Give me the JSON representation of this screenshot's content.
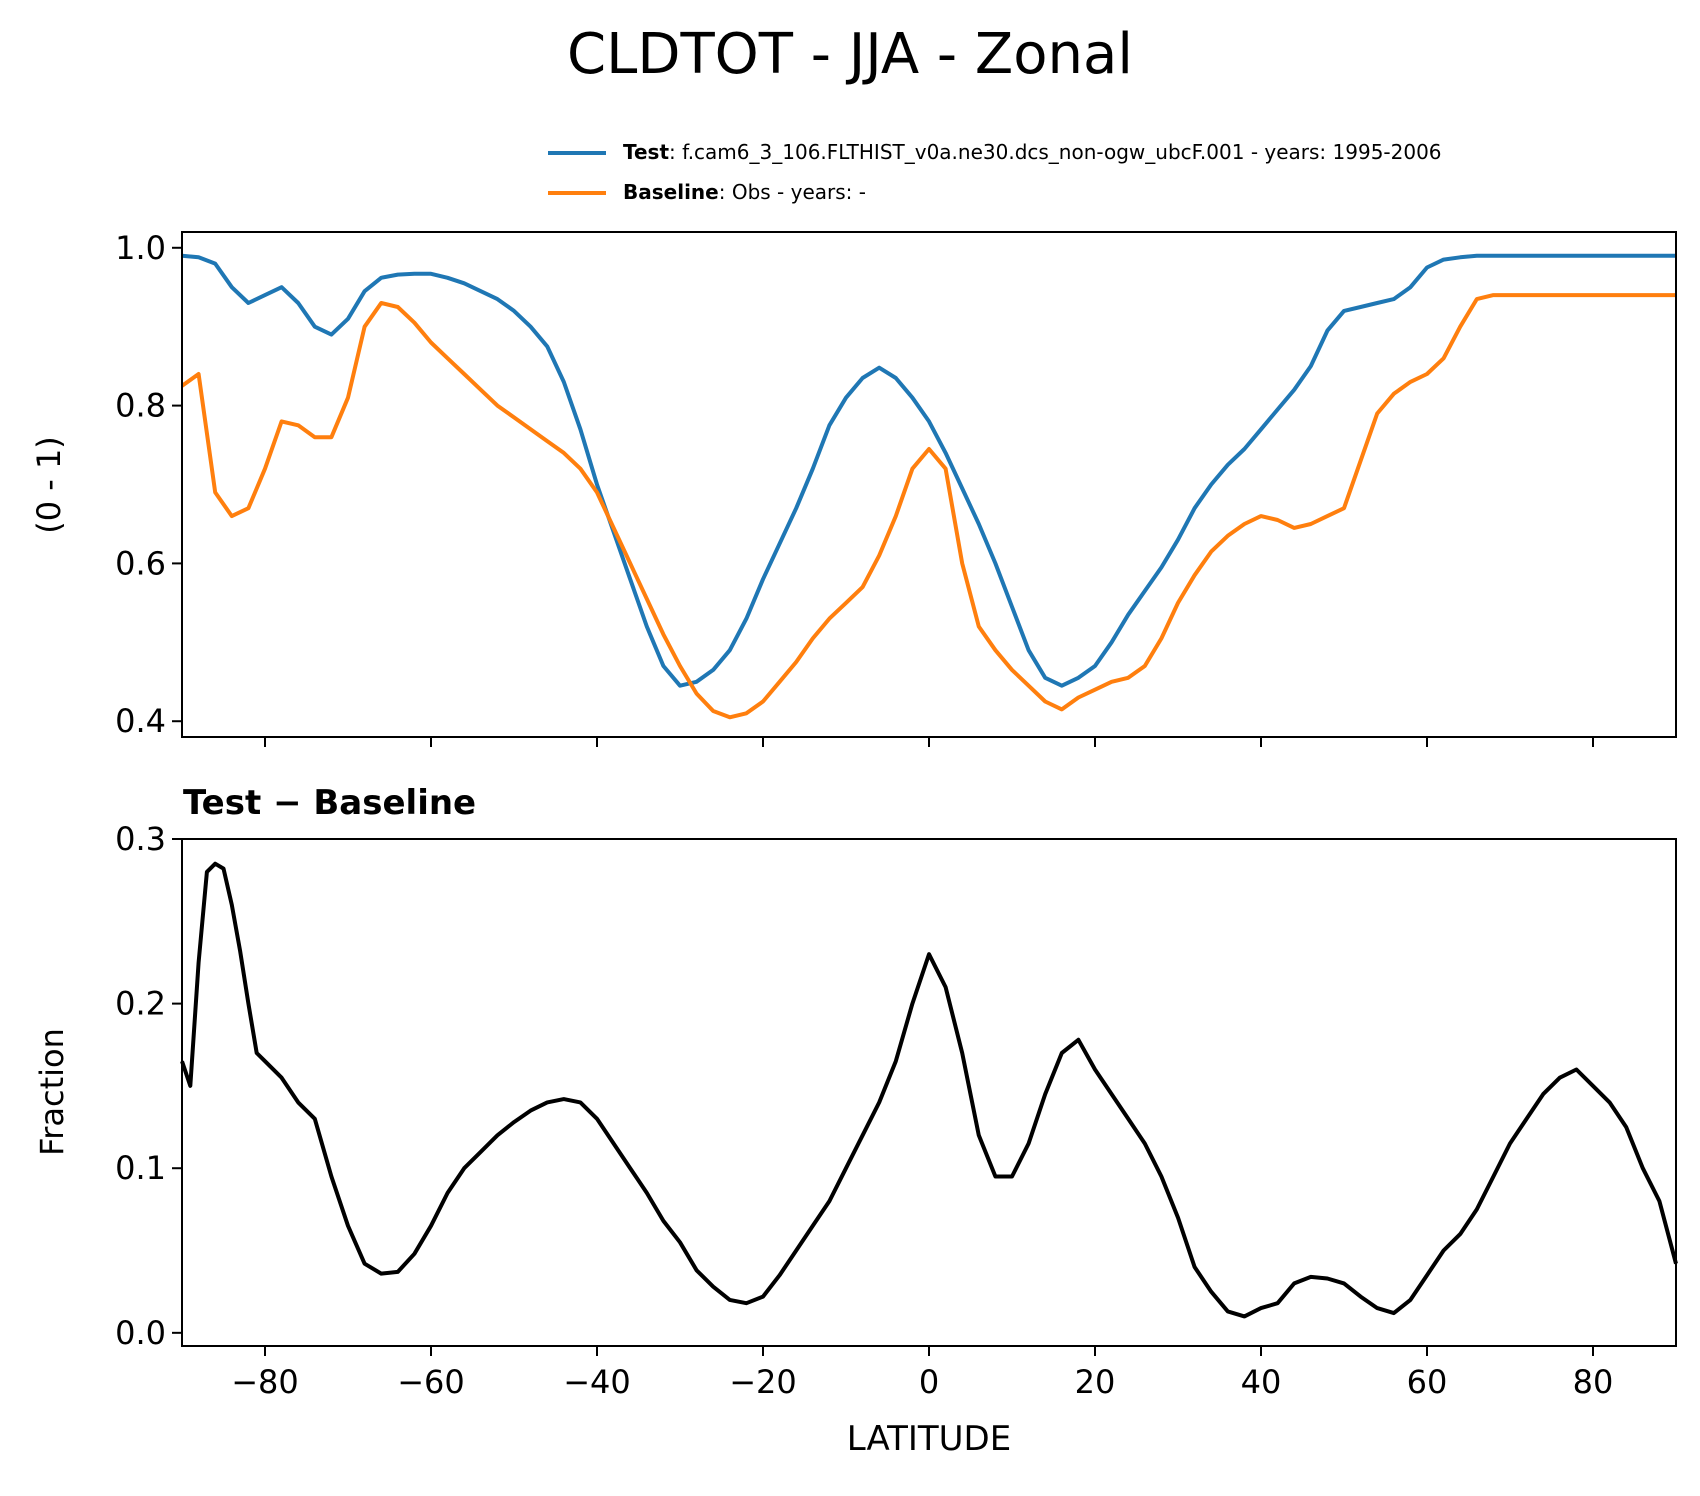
{
  "figure": {
    "title": "CLDTOT - JJA - Zonal",
    "legend": [
      {
        "label": "Test",
        "text": ": f.cam6_3_106.FLTHIST_v0a.ne30.dcs_non-ogw_ubcF.001 - years: 1995-2006",
        "color": "#1f77b4"
      },
      {
        "label": "Baseline",
        "text": ": Obs - years: -",
        "color": "#ff7f0e"
      }
    ]
  },
  "chart_data": [
    {
      "type": "line",
      "title": "",
      "xlabel": "",
      "ylabel": "(0 - 1)",
      "xlim": [
        -90,
        90
      ],
      "ylim": [
        0.38,
        1.02
      ],
      "yticks": [
        0.4,
        0.6,
        0.8,
        1.0
      ],
      "ytick_labels": [
        "0.4",
        "0.6",
        "0.8",
        "1.0"
      ],
      "x": [
        -90,
        -88,
        -86,
        -84,
        -82,
        -80,
        -78,
        -76,
        -74,
        -72,
        -70,
        -68,
        -66,
        -64,
        -62,
        -60,
        -58,
        -56,
        -54,
        -52,
        -50,
        -48,
        -46,
        -44,
        -42,
        -40,
        -38,
        -36,
        -34,
        -32,
        -30,
        -28,
        -26,
        -24,
        -22,
        -20,
        -18,
        -16,
        -14,
        -12,
        -10,
        -8,
        -6,
        -4,
        -2,
        0,
        2,
        4,
        6,
        8,
        10,
        12,
        14,
        16,
        18,
        20,
        22,
        24,
        26,
        28,
        30,
        32,
        34,
        36,
        38,
        40,
        42,
        44,
        46,
        48,
        50,
        52,
        54,
        56,
        58,
        60,
        62,
        64,
        66,
        68,
        70,
        72,
        74,
        76,
        78,
        80,
        82,
        84,
        86,
        88,
        90
      ],
      "series": [
        {
          "name": "Test",
          "color": "#1f77b4",
          "values": [
            0.99,
            0.988,
            0.98,
            0.95,
            0.93,
            0.94,
            0.95,
            0.93,
            0.9,
            0.89,
            0.91,
            0.945,
            0.962,
            0.966,
            0.967,
            0.967,
            0.962,
            0.955,
            0.945,
            0.935,
            0.92,
            0.9,
            0.875,
            0.83,
            0.77,
            0.7,
            0.64,
            0.58,
            0.52,
            0.47,
            0.445,
            0.45,
            0.465,
            0.49,
            0.53,
            0.58,
            0.625,
            0.67,
            0.72,
            0.775,
            0.81,
            0.835,
            0.848,
            0.835,
            0.81,
            0.78,
            0.74,
            0.695,
            0.65,
            0.6,
            0.545,
            0.49,
            0.455,
            0.445,
            0.455,
            0.47,
            0.5,
            0.535,
            0.565,
            0.595,
            0.63,
            0.67,
            0.7,
            0.725,
            0.745,
            0.77,
            0.795,
            0.82,
            0.85,
            0.895,
            0.92,
            0.925,
            0.93,
            0.935,
            0.95,
            0.975,
            0.985,
            0.988,
            0.99,
            0.99,
            0.99,
            0.99,
            0.99,
            0.99,
            0.99,
            0.99,
            0.99,
            0.99,
            0.99,
            0.99,
            0.99
          ]
        },
        {
          "name": "Baseline",
          "color": "#ff7f0e",
          "values": [
            0.825,
            0.84,
            0.69,
            0.66,
            0.67,
            0.72,
            0.78,
            0.775,
            0.76,
            0.76,
            0.81,
            0.9,
            0.93,
            0.925,
            0.905,
            0.88,
            0.86,
            0.84,
            0.82,
            0.8,
            0.785,
            0.77,
            0.755,
            0.74,
            0.72,
            0.69,
            0.645,
            0.6,
            0.555,
            0.51,
            0.47,
            0.435,
            0.413,
            0.405,
            0.41,
            0.425,
            0.45,
            0.475,
            0.505,
            0.53,
            0.55,
            0.57,
            0.61,
            0.66,
            0.72,
            0.745,
            0.72,
            0.6,
            0.52,
            0.49,
            0.465,
            0.445,
            0.425,
            0.415,
            0.43,
            0.44,
            0.45,
            0.455,
            0.47,
            0.505,
            0.55,
            0.585,
            0.615,
            0.635,
            0.65,
            0.66,
            0.655,
            0.645,
            0.65,
            0.66,
            0.67,
            0.73,
            0.79,
            0.815,
            0.83,
            0.84,
            0.86,
            0.9,
            0.935,
            0.94,
            0.94,
            0.94,
            0.94,
            0.94,
            0.94,
            0.94,
            0.94,
            0.94,
            0.94,
            0.94,
            0.94
          ]
        }
      ]
    },
    {
      "type": "line",
      "title": "Test − Baseline",
      "xlabel": "LATITUDE",
      "ylabel": "Fraction",
      "xlim": [
        -90,
        90
      ],
      "ylim": [
        -0.008,
        0.3
      ],
      "xticks": [
        -80,
        -60,
        -40,
        -20,
        0,
        20,
        40,
        60,
        80
      ],
      "xtick_labels": [
        "−80",
        "−60",
        "−40",
        "−20",
        "0",
        "20",
        "40",
        "60",
        "80"
      ],
      "yticks": [
        0.0,
        0.1,
        0.2,
        0.3
      ],
      "ytick_labels": [
        "0.0",
        "0.1",
        "0.2",
        "0.3"
      ],
      "x": [
        -90,
        -89,
        -88,
        -87,
        -86,
        -85,
        -84,
        -83,
        -82,
        -81,
        -80,
        -78,
        -76,
        -74,
        -72,
        -70,
        -68,
        -66,
        -64,
        -62,
        -60,
        -58,
        -56,
        -54,
        -52,
        -50,
        -48,
        -46,
        -44,
        -42,
        -40,
        -38,
        -36,
        -34,
        -32,
        -30,
        -28,
        -26,
        -24,
        -22,
        -20,
        -18,
        -16,
        -14,
        -12,
        -10,
        -8,
        -6,
        -4,
        -2,
        0,
        2,
        4,
        6,
        8,
        10,
        12,
        14,
        16,
        18,
        20,
        22,
        24,
        26,
        28,
        30,
        32,
        34,
        36,
        38,
        40,
        42,
        44,
        46,
        48,
        50,
        52,
        54,
        56,
        58,
        60,
        62,
        64,
        66,
        68,
        70,
        72,
        74,
        76,
        78,
        80,
        82,
        84,
        86,
        88,
        90
      ],
      "series": [
        {
          "name": "Test − Baseline",
          "color": "#000000",
          "values": [
            0.165,
            0.15,
            0.225,
            0.28,
            0.285,
            0.282,
            0.26,
            0.232,
            0.2,
            0.17,
            0.165,
            0.155,
            0.14,
            0.13,
            0.095,
            0.065,
            0.042,
            0.036,
            0.037,
            0.048,
            0.065,
            0.085,
            0.1,
            0.11,
            0.12,
            0.128,
            0.135,
            0.14,
            0.142,
            0.14,
            0.13,
            0.115,
            0.1,
            0.085,
            0.068,
            0.055,
            0.038,
            0.028,
            0.02,
            0.018,
            0.022,
            0.035,
            0.05,
            0.065,
            0.08,
            0.1,
            0.12,
            0.14,
            0.165,
            0.2,
            0.23,
            0.21,
            0.17,
            0.12,
            0.095,
            0.095,
            0.115,
            0.145,
            0.17,
            0.178,
            0.16,
            0.145,
            0.13,
            0.115,
            0.095,
            0.07,
            0.04,
            0.025,
            0.013,
            0.01,
            0.015,
            0.018,
            0.03,
            0.034,
            0.033,
            0.03,
            0.022,
            0.015,
            0.012,
            0.02,
            0.035,
            0.05,
            0.06,
            0.075,
            0.095,
            0.115,
            0.13,
            0.145,
            0.155,
            0.16,
            0.15,
            0.14,
            0.125,
            0.1,
            0.08,
            0.042
          ]
        }
      ]
    }
  ]
}
